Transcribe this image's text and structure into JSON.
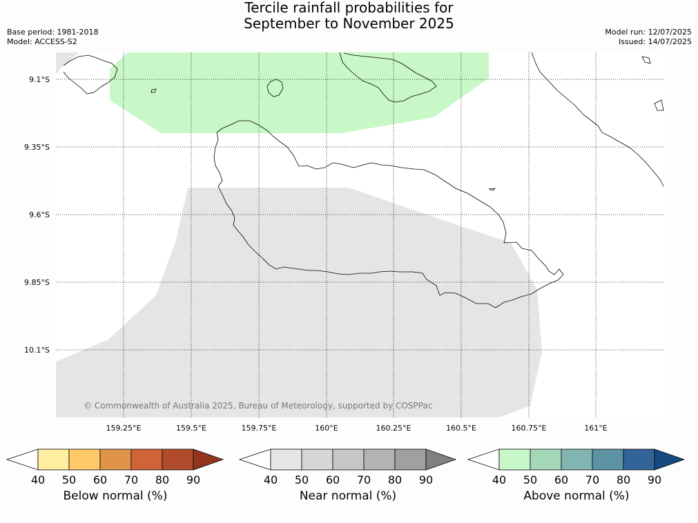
{
  "title_line1": "Tercile rainfall probabilities for",
  "title_line2": "September to November 2025",
  "base_period": "Base period: 1981-2018",
  "model": "Model: ACCESS-S2",
  "model_run": "Model run: 12/07/2025",
  "issued": "Issued: 14/07/2025",
  "copyright": "© Commonwealth of Australia 2025, Bureau of Meteorology, supported by COSPPac",
  "lat_labels": [
    "9.1°S",
    "9.35°S",
    "9.6°S",
    "9.85°S",
    "10.1°S"
  ],
  "lon_labels": [
    "159.25°E",
    "159.5°E",
    "159.75°E",
    "160°E",
    "160.25°E",
    "160.5°E",
    "160.75°E",
    "161°E"
  ],
  "regions": [
    {
      "category": "Above normal",
      "band": "40-50",
      "color": "#c8f7c8"
    },
    {
      "category": "Near normal",
      "band": "40-50",
      "color": "#e5e5e5"
    }
  ],
  "colorbars": [
    {
      "label": "Below normal (%)",
      "ticks": [
        "40",
        "50",
        "60",
        "70",
        "80",
        "90"
      ],
      "colors": [
        "#ffeda0",
        "#fec966",
        "#e0944a",
        "#cf6438",
        "#b04c2b"
      ],
      "extend_color": "#93341e"
    },
    {
      "label": "Near normal (%)",
      "ticks": [
        "40",
        "50",
        "60",
        "70",
        "80",
        "90"
      ],
      "colors": [
        "#e5e5e5",
        "#d6d6d6",
        "#c6c6c6",
        "#b3b3b3",
        "#a0a0a0"
      ],
      "extend_color": "#808080"
    },
    {
      "label": "Above normal (%)",
      "ticks": [
        "40",
        "50",
        "60",
        "70",
        "80",
        "90"
      ],
      "colors": [
        "#c8f7c8",
        "#a4d6b8",
        "#80b5b1",
        "#5c93a3",
        "#336498"
      ],
      "extend_color": "#164a80"
    }
  ]
}
